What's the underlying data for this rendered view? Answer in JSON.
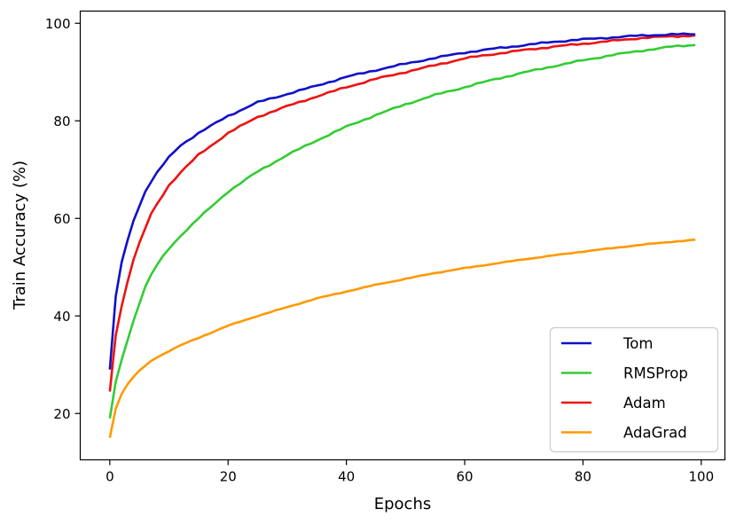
{
  "chart_data": {
    "type": "line",
    "title": "",
    "xlabel": "Epochs",
    "ylabel": "Train Accuracy (%)",
    "xlim": [
      -5,
      104
    ],
    "ylim": [
      10.5,
      102.5
    ],
    "xticks": [
      0,
      20,
      40,
      60,
      80,
      100
    ],
    "yticks": [
      20,
      40,
      60,
      80,
      100
    ],
    "grid": false,
    "legend_position": "lower-right",
    "series": [
      {
        "name": "Tom",
        "color": "#1010c8",
        "anchors_x": [
          0,
          1,
          2,
          3,
          4,
          5,
          6,
          7,
          8,
          10,
          12,
          15,
          20,
          25,
          30,
          35,
          40,
          45,
          50,
          55,
          60,
          65,
          70,
          75,
          80,
          85,
          90,
          95,
          99
        ],
        "anchors_y": [
          29.0,
          44.0,
          51.0,
          55.5,
          59.5,
          62.5,
          65.5,
          67.5,
          69.5,
          72.5,
          75.0,
          77.5,
          81.0,
          83.8,
          85.5,
          87.2,
          89.0,
          90.4,
          91.7,
          92.9,
          94.0,
          94.8,
          95.5,
          96.2,
          96.7,
          97.1,
          97.5,
          97.7,
          97.8
        ]
      },
      {
        "name": "RMSProp",
        "color": "#33cc33",
        "anchors_x": [
          0,
          1,
          2,
          3,
          4,
          5,
          6,
          7,
          8,
          10,
          12,
          15,
          20,
          25,
          30,
          35,
          40,
          45,
          50,
          55,
          60,
          65,
          70,
          75,
          80,
          85,
          90,
          95,
          99
        ],
        "anchors_y": [
          19.0,
          26.5,
          31.0,
          35.0,
          39.0,
          42.5,
          46.0,
          48.5,
          50.5,
          53.8,
          56.5,
          60.0,
          65.5,
          69.6,
          73.0,
          76.0,
          78.8,
          81.2,
          83.4,
          85.3,
          86.9,
          88.5,
          89.9,
          91.2,
          92.4,
          93.5,
          94.4,
          95.2,
          95.6
        ]
      },
      {
        "name": "Adam",
        "color": "#ee1111",
        "anchors_x": [
          0,
          1,
          2,
          3,
          4,
          5,
          6,
          7,
          8,
          10,
          12,
          15,
          20,
          25,
          30,
          35,
          40,
          45,
          50,
          55,
          60,
          65,
          70,
          75,
          80,
          85,
          90,
          95,
          99
        ],
        "anchors_y": [
          24.5,
          36.0,
          42.0,
          47.0,
          51.5,
          55.0,
          58.0,
          61.0,
          63.0,
          66.8,
          69.5,
          73.0,
          77.5,
          80.8,
          83.0,
          85.0,
          86.9,
          88.6,
          90.0,
          91.4,
          92.8,
          93.7,
          94.5,
          95.2,
          95.8,
          96.4,
          97.0,
          97.3,
          97.5
        ]
      },
      {
        "name": "AdaGrad",
        "color": "#ff9900",
        "anchors_x": [
          0,
          1,
          2,
          3,
          4,
          5,
          6,
          7,
          8,
          10,
          12,
          15,
          20,
          25,
          30,
          35,
          40,
          45,
          50,
          55,
          60,
          65,
          70,
          75,
          80,
          85,
          90,
          95,
          99
        ],
        "anchors_y": [
          15.0,
          21.0,
          24.0,
          26.0,
          27.5,
          28.8,
          29.8,
          30.8,
          31.5,
          32.8,
          34.0,
          35.5,
          38.0,
          40.0,
          41.8,
          43.6,
          45.0,
          46.4,
          47.6,
          48.8,
          49.8,
          50.7,
          51.6,
          52.4,
          53.2,
          53.9,
          54.6,
          55.2,
          55.6
        ]
      }
    ]
  }
}
